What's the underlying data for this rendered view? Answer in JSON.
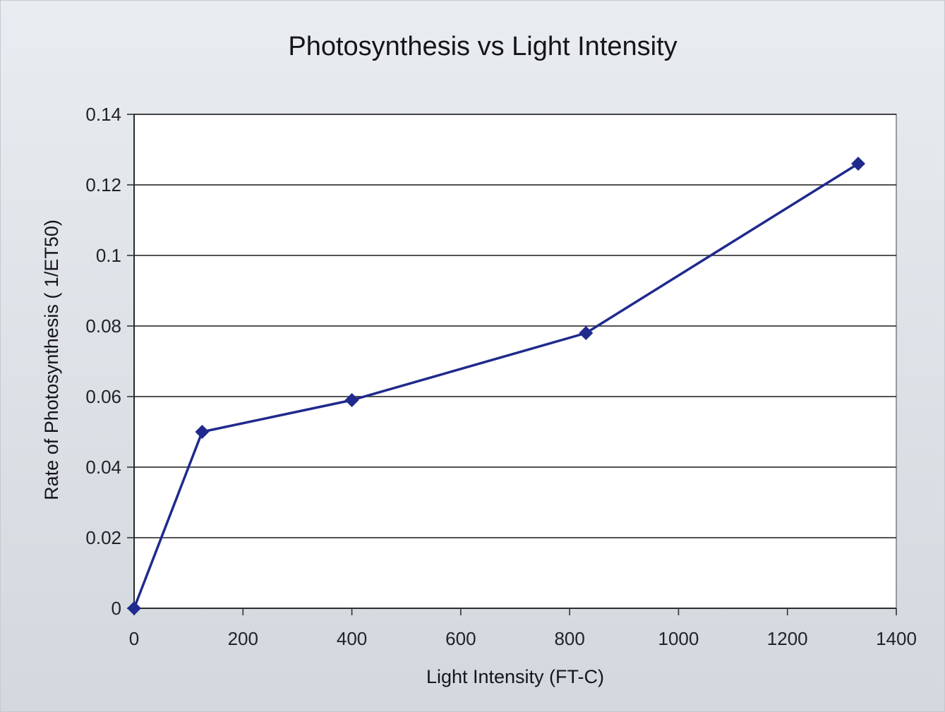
{
  "chart_data": {
    "type": "line",
    "title": "Photosynthesis vs Light Intensity",
    "xlabel": "Light Intensity (FT-C)",
    "ylabel": "Rate of Photosynthesis ( 1/ET50)",
    "x_ticks": [
      "0",
      "200",
      "400",
      "600",
      "800",
      "1000",
      "1200",
      "1400"
    ],
    "y_ticks": [
      "0",
      "0.02",
      "0.04",
      "0.06",
      "0.08",
      "0.1",
      "0.12",
      "0.14"
    ],
    "xlim": [
      0,
      1400
    ],
    "ylim": [
      0,
      0.14
    ],
    "grid": "horizontal",
    "legend": "none",
    "series": [
      {
        "x": [
          0,
          125,
          400,
          830,
          1330
        ],
        "y": [
          0,
          0.05,
          0.059,
          0.078,
          0.126
        ],
        "color": "#1f2a8c",
        "marker": "diamond"
      }
    ]
  }
}
